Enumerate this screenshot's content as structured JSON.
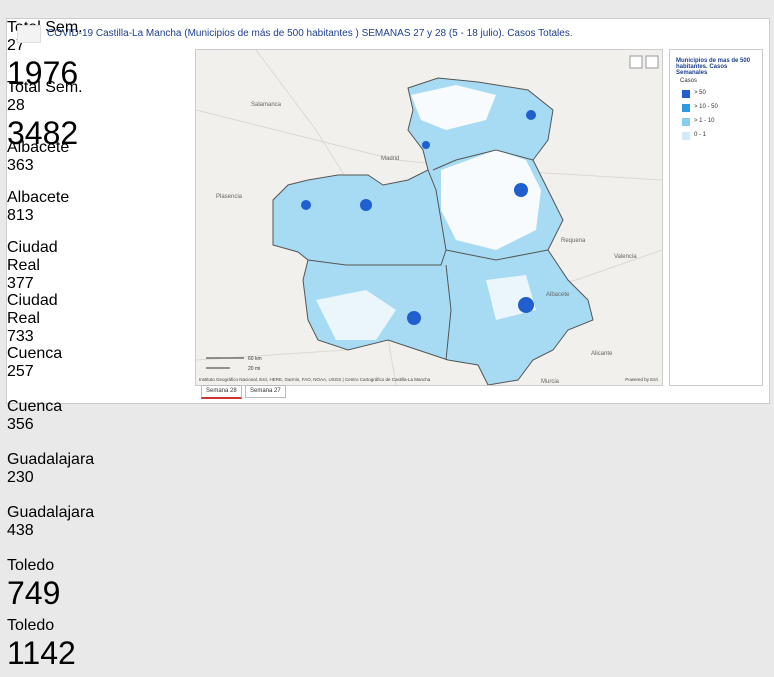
{
  "header": {
    "title": "COVID-19 Castilla-La Mancha (Municipios de más de 500 habitantes ) SEMANAS 27 y 28 (5 - 18 julio). Casos Totales."
  },
  "tiles": [
    {
      "label": "Total Sem. 27",
      "value": 1976
    },
    {
      "label": "Total Sem. 28",
      "value": 3482
    },
    {
      "label": "Albacete",
      "value": 363
    },
    {
      "label": "Albacete",
      "value": 813
    },
    {
      "label": "Ciudad Real",
      "value": 377
    },
    {
      "label": "Ciudad Real",
      "value": 733
    },
    {
      "label": "Cuenca",
      "value": 257
    },
    {
      "label": "Cuenca",
      "value": 356
    },
    {
      "label": "Guadalajara",
      "value": 230
    },
    {
      "label": "Guadalajara",
      "value": 438
    },
    {
      "label": "Toledo",
      "value": 749
    },
    {
      "label": "Toledo",
      "value": 1142
    }
  ],
  "legend": {
    "title": "Municipios de mas de 500 habitantes. Casos Semanales",
    "subtitle": "Casos",
    "items": [
      {
        "label": "> 50",
        "color": "#1f5fd0"
      },
      {
        "label": "> 10 - 50",
        "color": "#2e9be0"
      },
      {
        "label": "> 1 - 10",
        "color": "#86cdf1"
      },
      {
        "label": "0 - 1",
        "color": "#d3ebf8"
      }
    ]
  },
  "map": {
    "labels": [
      "Madrid",
      "Valencia",
      "Salamanca",
      "Plasencia",
      "Requena",
      "Albacete",
      "Alicante",
      "Murcia"
    ],
    "scale": [
      "60 km",
      "20 mi"
    ],
    "attribution": "Instituto Geográfico Nacional, Esri, HERE, Garmin, FAO, NOAA, USGS | Centro Cartográfico de Castilla-La Mancha",
    "powered": "Powered by Esri"
  },
  "tabs": [
    "Semana 28",
    "Semana 27"
  ]
}
